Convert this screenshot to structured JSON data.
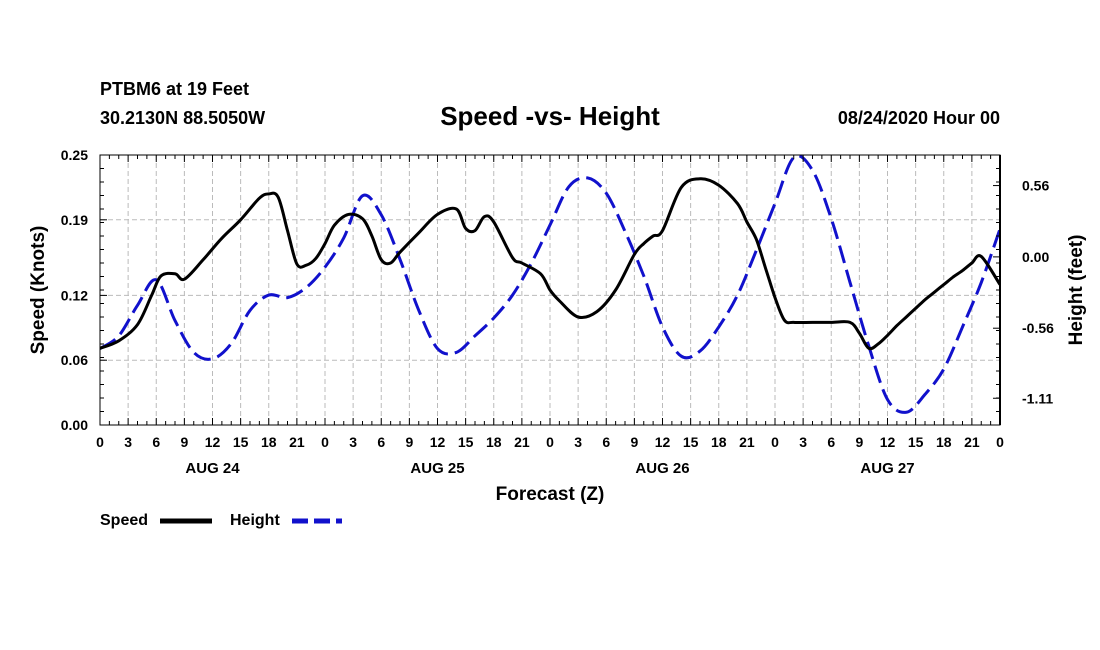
{
  "header": {
    "station": "PTBM6 at 19 Feet",
    "location": "30.2130N 88.5050W",
    "title": "Speed -vs- Height",
    "issued": "08/24/2020 Hour 00"
  },
  "legend": {
    "speed_label": "Speed",
    "height_label": "Height"
  },
  "colors": {
    "speed": "#000000",
    "height": "#1111cc",
    "grid": "#bbbbbb"
  },
  "chart_data": {
    "type": "line",
    "title": "Speed -vs- Height",
    "xlabel": "Forecast (Z)",
    "ylabel": "Speed (Knots)",
    "y2label": "Height (feet)",
    "x_unit": "forecast hours from 08/24/2020 00Z",
    "xlim": [
      0,
      96
    ],
    "ylim": [
      0,
      0.25
    ],
    "y2lim": [
      -1.32,
      0.8
    ],
    "grid": true,
    "x_ticks": [
      0,
      3,
      6,
      9,
      12,
      15,
      18,
      21,
      24,
      27,
      30,
      33,
      36,
      39,
      42,
      45,
      48,
      51,
      54,
      57,
      60,
      63,
      66,
      69,
      72,
      75,
      78,
      81,
      84,
      87,
      90,
      93,
      96
    ],
    "x_tick_labels": [
      "0",
      "3",
      "6",
      "9",
      "12",
      "15",
      "18",
      "21",
      "0",
      "3",
      "6",
      "9",
      "12",
      "15",
      "18",
      "21",
      "0",
      "3",
      "6",
      "9",
      "12",
      "15",
      "18",
      "21",
      "0",
      "3",
      "6",
      "9",
      "12",
      "15",
      "18",
      "21",
      "0"
    ],
    "day_labels": [
      {
        "x": 12,
        "label": "AUG 24"
      },
      {
        "x": 36,
        "label": "AUG 25"
      },
      {
        "x": 60,
        "label": "AUG 26"
      },
      {
        "x": 84,
        "label": "AUG 27"
      }
    ],
    "y_ticks": [
      0.0,
      0.06,
      0.12,
      0.19,
      0.25
    ],
    "y_tick_labels": [
      "0.00",
      "0.06",
      "0.12",
      "0.19",
      "0.25"
    ],
    "y2_ticks": [
      0.56,
      0.0,
      -0.56,
      -1.11
    ],
    "y2_tick_labels": [
      "0.56",
      "0.00",
      "-0.56",
      "-1.11"
    ],
    "series": [
      {
        "name": "Speed",
        "axis": "left",
        "style": "solid",
        "x": [
          0,
          2,
          4,
          5.5,
          6.5,
          8,
          9,
          11,
          13,
          15,
          17,
          18,
          19,
          20,
          21,
          22,
          23,
          24,
          25,
          26.5,
          28,
          29,
          30,
          31,
          32,
          34,
          36,
          38,
          39,
          40,
          41,
          42,
          44,
          45,
          47,
          48,
          49,
          51,
          53,
          55,
          57,
          58,
          59,
          60,
          62,
          64,
          66,
          68,
          69,
          70,
          71,
          72,
          73,
          74,
          76,
          78,
          80,
          81,
          82,
          83,
          84,
          85,
          86,
          87,
          88,
          89,
          90,
          91,
          92,
          93,
          94,
          96
        ],
        "values": [
          0.071,
          0.078,
          0.093,
          0.12,
          0.138,
          0.14,
          0.135,
          0.153,
          0.173,
          0.19,
          0.21,
          0.214,
          0.211,
          0.18,
          0.149,
          0.148,
          0.154,
          0.168,
          0.185,
          0.195,
          0.191,
          0.175,
          0.153,
          0.15,
          0.16,
          0.178,
          0.195,
          0.2,
          0.182,
          0.18,
          0.193,
          0.188,
          0.155,
          0.15,
          0.14,
          0.125,
          0.115,
          0.1,
          0.105,
          0.125,
          0.158,
          0.168,
          0.175,
          0.18,
          0.22,
          0.228,
          0.222,
          0.205,
          0.188,
          0.172,
          0.145,
          0.118,
          0.097,
          0.095,
          0.095,
          0.095,
          0.095,
          0.085,
          0.071,
          0.075,
          0.083,
          0.092,
          0.1,
          0.108,
          0.116,
          0.123,
          0.13,
          0.137,
          0.143,
          0.15,
          0.156,
          0.13
        ]
      },
      {
        "name": "Height",
        "axis": "right",
        "style": "dashed",
        "x": [
          0,
          2,
          4,
          6,
          8,
          10,
          12,
          14,
          16,
          18,
          20,
          22,
          24,
          26,
          28,
          30,
          32,
          34,
          36,
          38,
          40,
          42,
          44,
          46,
          48,
          50,
          52,
          54,
          56,
          58,
          60,
          62,
          64,
          66,
          68,
          70,
          72,
          74,
          76,
          78,
          80,
          82,
          84,
          86,
          88,
          90,
          92,
          94,
          96
        ],
        "values": [
          -0.72,
          -0.62,
          -0.38,
          -0.18,
          -0.5,
          -0.75,
          -0.8,
          -0.68,
          -0.42,
          -0.3,
          -0.32,
          -0.24,
          -0.08,
          0.15,
          0.48,
          0.33,
          -0.02,
          -0.42,
          -0.72,
          -0.75,
          -0.62,
          -0.48,
          -0.3,
          -0.05,
          0.25,
          0.55,
          0.62,
          0.5,
          0.2,
          -0.15,
          -0.55,
          -0.78,
          -0.74,
          -0.55,
          -0.3,
          0.05,
          0.42,
          0.78,
          0.68,
          0.3,
          -0.2,
          -0.7,
          -1.12,
          -1.22,
          -1.08,
          -0.88,
          -0.55,
          -0.2,
          0.22
        ]
      }
    ]
  }
}
